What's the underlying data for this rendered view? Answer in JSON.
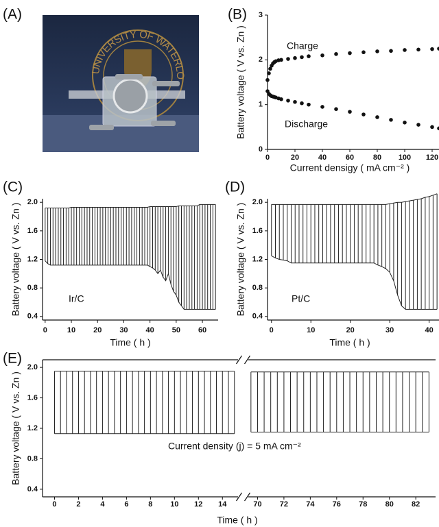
{
  "photo": {
    "label": "(A)",
    "logo_text": "UNIVERSITY OF WATERLOO"
  },
  "chart_data": [
    {
      "type": "scatter",
      "label": "(B)",
      "x_label": "Current densigy ( mA cm⁻² )",
      "y_label": "Battery voltage ( V vs. Zn )",
      "xlim": [
        0,
        125
      ],
      "xticks": [
        0,
        20,
        40,
        60,
        80,
        100,
        120
      ],
      "ylim": [
        0,
        3
      ],
      "yticks": [
        0,
        1,
        2,
        3
      ],
      "x": [
        0,
        1,
        2,
        3,
        4,
        5,
        6,
        8,
        10,
        15,
        20,
        25,
        30,
        40,
        50,
        60,
        70,
        80,
        90,
        100,
        110,
        120,
        125
      ],
      "series": [
        {
          "name": "Charge",
          "color": "#111111",
          "values": [
            1.55,
            1.7,
            1.8,
            1.87,
            1.92,
            1.95,
            1.97,
            1.99,
            2.0,
            2.02,
            2.04,
            2.06,
            2.08,
            2.1,
            2.13,
            2.15,
            2.17,
            2.19,
            2.2,
            2.22,
            2.23,
            2.24,
            2.25
          ]
        },
        {
          "name": "Discharge",
          "color": "#111111",
          "values": [
            1.3,
            1.24,
            1.21,
            1.19,
            1.18,
            1.17,
            1.16,
            1.14,
            1.12,
            1.09,
            1.06,
            1.03,
            1.0,
            0.95,
            0.9,
            0.84,
            0.78,
            0.72,
            0.66,
            0.6,
            0.55,
            0.5,
            0.47
          ]
        }
      ]
    },
    {
      "type": "cycling",
      "label": "(C)",
      "annotation": "Ir/C",
      "x_label": "Time ( h )",
      "y_label": "Battery voltage ( V vs. Zn )",
      "xlim": [
        -1,
        66
      ],
      "xticks": [
        0,
        10,
        20,
        30,
        40,
        50,
        60
      ],
      "ylim": [
        0.35,
        2.05
      ],
      "yticks": [
        0.4,
        0.8,
        1.2,
        1.6,
        {
          "value": 2,
          "label": "2.0"
        }
      ],
      "color": "#222222",
      "segments": [
        {
          "x": [
            0,
            1,
            2,
            3,
            4,
            5,
            6,
            7,
            8,
            9,
            10,
            11,
            12,
            13,
            14,
            15,
            16,
            17,
            18,
            19,
            20,
            21,
            22,
            23,
            24,
            25,
            26,
            27,
            28,
            29,
            30,
            31,
            32,
            33,
            34,
            35,
            36,
            37,
            38,
            39,
            40,
            41,
            42,
            43,
            44,
            45,
            46,
            47,
            48,
            49,
            50,
            51,
            52,
            53,
            54,
            55,
            56,
            57,
            58,
            59,
            60,
            61,
            62,
            63,
            64,
            65
          ],
          "charge": [
            1.92,
            1.92,
            1.92,
            1.92,
            1.92,
            1.92,
            1.92,
            1.92,
            1.92,
            1.92,
            1.93,
            1.93,
            1.93,
            1.93,
            1.93,
            1.93,
            1.93,
            1.93,
            1.93,
            1.93,
            1.93,
            1.93,
            1.93,
            1.93,
            1.93,
            1.93,
            1.93,
            1.93,
            1.93,
            1.93,
            1.93,
            1.93,
            1.93,
            1.93,
            1.93,
            1.93,
            1.93,
            1.93,
            1.93,
            1.93,
            1.94,
            1.94,
            1.94,
            1.94,
            1.94,
            1.94,
            1.94,
            1.94,
            1.94,
            1.94,
            1.94,
            1.95,
            1.95,
            1.95,
            1.95,
            1.95,
            1.95,
            1.95,
            1.95,
            1.97,
            1.97,
            1.97,
            1.97,
            1.97,
            1.97,
            1.97
          ],
          "discharge": [
            1.18,
            1.14,
            1.12,
            1.12,
            1.12,
            1.12,
            1.12,
            1.12,
            1.12,
            1.12,
            1.12,
            1.12,
            1.12,
            1.12,
            1.12,
            1.12,
            1.12,
            1.12,
            1.12,
            1.12,
            1.12,
            1.12,
            1.12,
            1.12,
            1.12,
            1.12,
            1.12,
            1.12,
            1.12,
            1.12,
            1.12,
            1.12,
            1.12,
            1.12,
            1.12,
            1.12,
            1.12,
            1.12,
            1.12,
            1.12,
            1.1,
            1.08,
            1.05,
            1.0,
            1.05,
            0.95,
            0.9,
            1.0,
            0.85,
            0.75,
            0.7,
            0.6,
            0.55,
            0.5,
            0.5,
            0.5,
            0.5,
            0.5,
            0.5,
            0.5,
            0.5,
            0.5,
            0.5,
            0.5,
            0.5,
            0.5
          ]
        }
      ]
    },
    {
      "type": "cycling",
      "label": "(D)",
      "annotation": "Pt/C",
      "x_label": "Time ( h )",
      "y_label": "Battery voltage ( V vs. Zn )",
      "xlim": [
        -1,
        42.5
      ],
      "xticks": [
        0,
        10,
        20,
        30,
        40
      ],
      "ylim": [
        0.35,
        2.05
      ],
      "yticks": [
        0.4,
        0.8,
        1.2,
        1.6,
        {
          "value": 2,
          "label": "2.0"
        }
      ],
      "color": "#222222",
      "segments": [
        {
          "x": [
            0,
            1,
            2,
            3,
            4,
            5,
            6,
            7,
            8,
            9,
            10,
            11,
            12,
            13,
            14,
            15,
            16,
            17,
            18,
            19,
            20,
            21,
            22,
            23,
            24,
            25,
            26,
            27,
            28,
            29,
            30,
            31,
            32,
            33,
            34,
            35,
            36,
            37,
            38,
            39,
            40,
            41,
            42
          ],
          "charge": [
            1.97,
            1.97,
            1.97,
            1.97,
            1.97,
            1.97,
            1.97,
            1.97,
            1.97,
            1.97,
            1.97,
            1.97,
            1.97,
            1.97,
            1.97,
            1.97,
            1.97,
            1.97,
            1.97,
            1.97,
            1.97,
            1.97,
            1.97,
            1.97,
            1.97,
            1.97,
            1.97,
            1.97,
            1.97,
            1.97,
            1.98,
            1.99,
            2.0,
            2.0,
            2.01,
            2.02,
            2.03,
            2.04,
            2.05,
            2.07,
            2.08,
            2.1,
            2.12
          ],
          "discharge": [
            1.25,
            1.22,
            1.2,
            1.19,
            1.18,
            1.15,
            1.15,
            1.15,
            1.15,
            1.15,
            1.15,
            1.15,
            1.15,
            1.15,
            1.15,
            1.15,
            1.15,
            1.15,
            1.15,
            1.15,
            1.15,
            1.15,
            1.15,
            1.15,
            1.15,
            1.15,
            1.15,
            1.12,
            1.1,
            1.07,
            1.02,
            0.9,
            0.7,
            0.55,
            0.5,
            0.5,
            0.5,
            0.5,
            0.5,
            0.5,
            0.5,
            0.5,
            0.5
          ]
        }
      ]
    },
    {
      "type": "cycling",
      "label": "(E)",
      "annotation": "Current density (j) = 5 mA cm⁻²",
      "x_label": "Time ( h )",
      "y_label": "Battery voltage ( V vs. Zn )",
      "xlim_segments": [
        [
          -1,
          15.3
        ],
        [
          69.3,
          83.5
        ]
      ],
      "xticks": [
        0,
        2,
        4,
        6,
        8,
        10,
        12,
        14,
        70,
        72,
        74,
        76,
        78,
        80,
        82
      ],
      "ylim": [
        0.3,
        2.1
      ],
      "yticks": [
        0.4,
        0.8,
        1.2,
        1.6,
        {
          "value": 2,
          "label": "2.0"
        }
      ],
      "color": "#222222",
      "segments": [
        {
          "x": [
            0,
            0.5,
            1,
            1.5,
            2,
            2.5,
            3,
            3.5,
            4,
            4.5,
            5,
            5.5,
            6,
            6.5,
            7,
            7.5,
            8,
            8.5,
            9,
            9.5,
            10,
            10.5,
            11,
            11.5,
            12,
            12.5,
            13,
            13.5,
            14,
            14.5,
            15
          ],
          "charge": [
            1.95,
            1.95,
            1.95,
            1.95,
            1.95,
            1.95,
            1.95,
            1.95,
            1.95,
            1.95,
            1.95,
            1.95,
            1.95,
            1.95,
            1.95,
            1.95,
            1.95,
            1.95,
            1.95,
            1.95,
            1.95,
            1.95,
            1.95,
            1.95,
            1.95,
            1.95,
            1.95,
            1.95,
            1.95,
            1.95,
            1.95
          ],
          "discharge": [
            1.13,
            1.13,
            1.13,
            1.13,
            1.13,
            1.13,
            1.13,
            1.13,
            1.13,
            1.13,
            1.13,
            1.13,
            1.13,
            1.13,
            1.13,
            1.13,
            1.13,
            1.13,
            1.13,
            1.13,
            1.13,
            1.13,
            1.13,
            1.13,
            1.13,
            1.13,
            1.13,
            1.13,
            1.13,
            1.13,
            1.13
          ]
        },
        {
          "x": [
            69.5,
            70,
            70.5,
            71,
            71.5,
            72,
            72.5,
            73,
            73.5,
            74,
            74.5,
            75,
            75.5,
            76,
            76.5,
            77,
            77.5,
            78,
            78.5,
            79,
            79.5,
            80,
            80.5,
            81,
            81.5,
            82,
            82.5,
            83
          ],
          "charge": [
            1.94,
            1.94,
            1.94,
            1.94,
            1.94,
            1.94,
            1.94,
            1.94,
            1.94,
            1.94,
            1.94,
            1.94,
            1.94,
            1.94,
            1.94,
            1.94,
            1.94,
            1.94,
            1.94,
            1.94,
            1.94,
            1.94,
            1.94,
            1.94,
            1.94,
            1.94,
            1.94,
            1.94
          ],
          "discharge": [
            1.15,
            1.15,
            1.15,
            1.15,
            1.15,
            1.15,
            1.15,
            1.15,
            1.15,
            1.15,
            1.15,
            1.15,
            1.15,
            1.15,
            1.15,
            1.15,
            1.15,
            1.15,
            1.15,
            1.15,
            1.15,
            1.15,
            1.15,
            1.15,
            1.15,
            1.15,
            1.15,
            1.15
          ]
        }
      ]
    }
  ]
}
